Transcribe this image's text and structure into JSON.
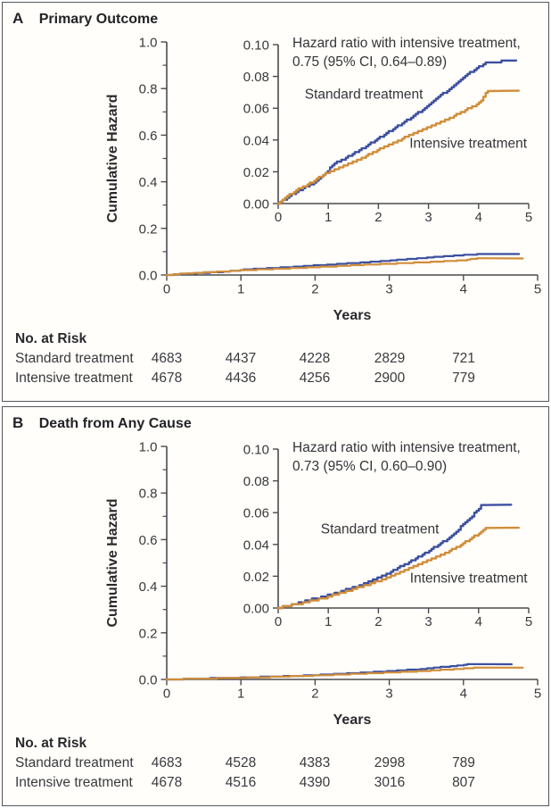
{
  "figure": {
    "colors": {
      "blue": "#3c4f9f",
      "orange": "#d08d3a",
      "axis": "#4a4a4c",
      "text": "#3a3a3c"
    }
  },
  "chart_data": [
    {
      "panel_label": "A",
      "title": "Primary Outcome",
      "type": "line",
      "xlabel": "Years",
      "ylabel": "Cumulative Hazard",
      "annotation": [
        "Hazard ratio with intensive treatment,",
        "0.75 (95% CI, 0.64–0.89)"
      ],
      "main_axis": {
        "xlim": [
          0,
          5
        ],
        "ylim": [
          0,
          1.0
        ],
        "xticks": [
          "0",
          "1",
          "2",
          "3",
          "4",
          "5"
        ],
        "yticks": [
          "0.0",
          "0.2",
          "0.4",
          "0.6",
          "0.8",
          "1.0"
        ],
        "y_minor_step": 0.1,
        "grid": false
      },
      "inset_axis": {
        "xlim": [
          0,
          5
        ],
        "ylim": [
          0,
          0.1
        ],
        "xticks": [
          "0",
          "1",
          "2",
          "3",
          "4",
          "5"
        ],
        "yticks": [
          "0.00",
          "0.02",
          "0.04",
          "0.06",
          "0.08",
          "0.10"
        ],
        "grid": false
      },
      "series": [
        {
          "name": "Standard treatment",
          "color_key": "blue",
          "x": [
            0,
            0.15,
            0.4,
            0.7,
            0.95,
            1.0,
            1.05,
            1.3,
            1.6,
            1.9,
            2.1,
            2.4,
            2.7,
            3.0,
            3.2,
            3.45,
            3.6,
            3.8,
            3.95,
            4.1,
            4.2,
            4.75
          ],
          "y": [
            0,
            0.003,
            0.008,
            0.013,
            0.019,
            0.02,
            0.024,
            0.028,
            0.033,
            0.039,
            0.043,
            0.049,
            0.055,
            0.062,
            0.067,
            0.073,
            0.077,
            0.082,
            0.085,
            0.088,
            0.089,
            0.09
          ],
          "label_pos": {
            "x": 0.53,
            "y": 0.066
          }
        },
        {
          "name": "Intensive treatment",
          "color_key": "orange",
          "x": [
            0,
            0.15,
            0.4,
            0.7,
            0.95,
            1.1,
            1.4,
            1.7,
            2.0,
            2.3,
            2.6,
            2.9,
            3.2,
            3.5,
            3.8,
            4.0,
            4.05,
            4.1,
            4.15,
            4.2,
            4.8
          ],
          "y": [
            0,
            0.004,
            0.009,
            0.014,
            0.019,
            0.021,
            0.025,
            0.029,
            0.034,
            0.038,
            0.043,
            0.047,
            0.051,
            0.055,
            0.06,
            0.063,
            0.065,
            0.068,
            0.07,
            0.071,
            0.071
          ],
          "label_pos": {
            "x": 2.62,
            "y": 0.035
          }
        }
      ],
      "risk_table": {
        "header": "No. at Risk",
        "rows": [
          {
            "label": "Standard treatment",
            "values": [
              "4683",
              "4437",
              "4228",
              "2829",
              "721"
            ]
          },
          {
            "label": "Intensive treatment",
            "values": [
              "4678",
              "4436",
              "4256",
              "2900",
              "779"
            ]
          }
        ]
      }
    },
    {
      "panel_label": "B",
      "title": "Death from Any Cause",
      "type": "line",
      "xlabel": "Years",
      "ylabel": "Cumulative Hazard",
      "annotation": [
        "Hazard ratio with intensive treatment,",
        "0.73 (95% CI, 0.60–0.90)"
      ],
      "main_axis": {
        "xlim": [
          0,
          5
        ],
        "ylim": [
          0,
          1.0
        ],
        "xticks": [
          "0",
          "1",
          "2",
          "3",
          "4",
          "5"
        ],
        "yticks": [
          "0.0",
          "0.2",
          "0.4",
          "0.6",
          "0.8",
          "1.0"
        ],
        "y_minor_step": 0.1,
        "grid": false
      },
      "inset_axis": {
        "xlim": [
          0,
          5
        ],
        "ylim": [
          0,
          0.1
        ],
        "xticks": [
          "0",
          "1",
          "2",
          "3",
          "4",
          "5"
        ],
        "yticks": [
          "0.00",
          "0.02",
          "0.04",
          "0.06",
          "0.08",
          "0.10"
        ],
        "grid": false
      },
      "series": [
        {
          "name": "Standard treatment",
          "color_key": "blue",
          "x": [
            0,
            0.3,
            0.6,
            0.9,
            1.2,
            1.5,
            1.7,
            2.0,
            2.2,
            2.5,
            2.8,
            3.0,
            3.2,
            3.4,
            3.55,
            3.7,
            3.8,
            3.9,
            4.0,
            4.05,
            4.65
          ],
          "y": [
            0,
            0.002,
            0.005,
            0.007,
            0.01,
            0.013,
            0.015,
            0.019,
            0.022,
            0.027,
            0.032,
            0.036,
            0.04,
            0.044,
            0.048,
            0.053,
            0.056,
            0.059,
            0.062,
            0.065,
            0.065
          ],
          "label_pos": {
            "x": 0.85,
            "y": 0.047
          }
        },
        {
          "name": "Intensive treatment",
          "color_key": "orange",
          "x": [
            0,
            0.3,
            0.6,
            0.9,
            1.2,
            1.5,
            1.8,
            2.1,
            2.4,
            2.7,
            3.0,
            3.3,
            3.6,
            3.8,
            3.95,
            4.1,
            4.15,
            4.8
          ],
          "y": [
            0,
            0.002,
            0.004,
            0.006,
            0.009,
            0.012,
            0.015,
            0.018,
            0.022,
            0.026,
            0.03,
            0.034,
            0.039,
            0.043,
            0.046,
            0.049,
            0.0505,
            0.0505
          ],
          "label_pos": {
            "x": 2.63,
            "y": 0.016
          }
        }
      ],
      "risk_table": {
        "header": "No. at Risk",
        "rows": [
          {
            "label": "Standard treatment",
            "values": [
              "4683",
              "4528",
              "4383",
              "2998",
              "789"
            ]
          },
          {
            "label": "Intensive treatment",
            "values": [
              "4678",
              "4516",
              "4390",
              "3016",
              "807"
            ]
          }
        ]
      }
    }
  ]
}
